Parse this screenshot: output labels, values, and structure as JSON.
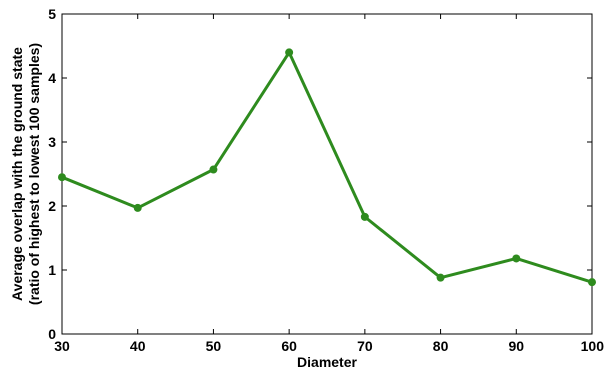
{
  "chart_data": {
    "type": "line",
    "title": "",
    "xlabel": "Diameter",
    "ylabel_line1": "Average overlap with the ground state",
    "ylabel_line2": "(ratio of highest to lowest 100 samples)",
    "xlim": [
      30,
      100
    ],
    "ylim": [
      0,
      5
    ],
    "x_ticks": [
      "30",
      "40",
      "50",
      "60",
      "70",
      "80",
      "90",
      "100"
    ],
    "y_ticks": [
      "0",
      "1",
      "2",
      "3",
      "4",
      "5"
    ],
    "grid": false,
    "legend": "none",
    "series": [
      {
        "color": "#2e8b1e",
        "x": [
          30,
          40,
          50,
          60,
          70,
          80,
          90,
          100
        ],
        "y": [
          2.45,
          1.97,
          2.57,
          4.4,
          1.83,
          0.88,
          1.18,
          0.81
        ]
      }
    ]
  }
}
